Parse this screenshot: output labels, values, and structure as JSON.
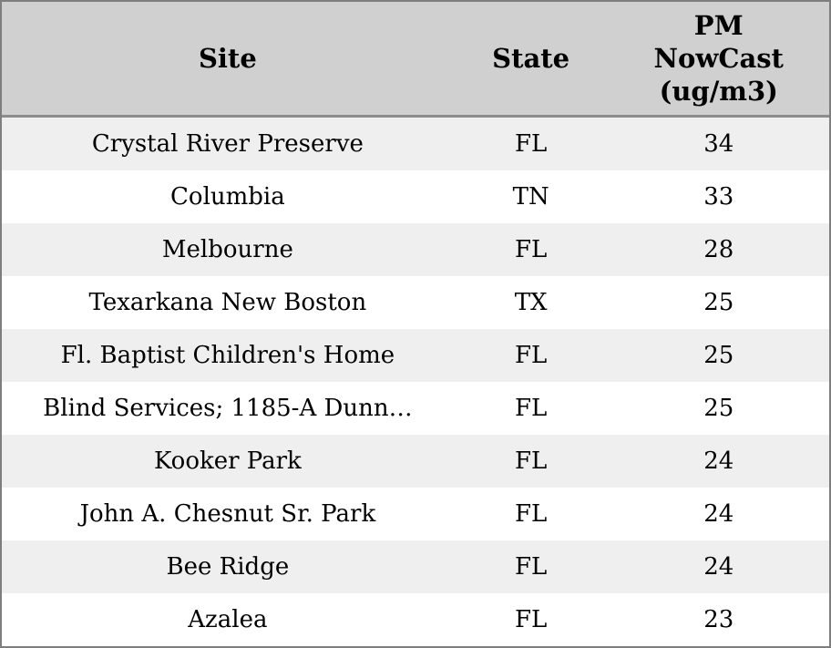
{
  "chart_data": {
    "type": "table",
    "columns": [
      "Site",
      "State",
      "PM NowCast (ug/m3)"
    ],
    "rows": [
      [
        "Crystal River Preserve",
        "FL",
        34
      ],
      [
        "Columbia",
        "TN",
        33
      ],
      [
        "Melbourne",
        "FL",
        28
      ],
      [
        "Texarkana New Boston",
        "TX",
        25
      ],
      [
        "Fl. Baptist Children's Home",
        "FL",
        25
      ],
      [
        "Blind Services; 1185-A Dunn…",
        "FL",
        25
      ],
      [
        "Kooker Park",
        "FL",
        24
      ],
      [
        "John A. Chesnut Sr. Park",
        "FL",
        24
      ],
      [
        "Bee Ridge",
        "FL",
        24
      ],
      [
        "Azalea",
        "FL",
        23
      ]
    ]
  },
  "header": {
    "site_label": "Site",
    "state_label": "State",
    "pm_label": "PM\nNowCast\n(ug/m3)"
  },
  "colors": {
    "border": "#7e7e7e",
    "header_bg": "#d0d0d0",
    "header_divider": "#8c8c8c",
    "row_alt_bg": "#efefef",
    "row_bg": "#ffffff",
    "text": "#000000"
  }
}
